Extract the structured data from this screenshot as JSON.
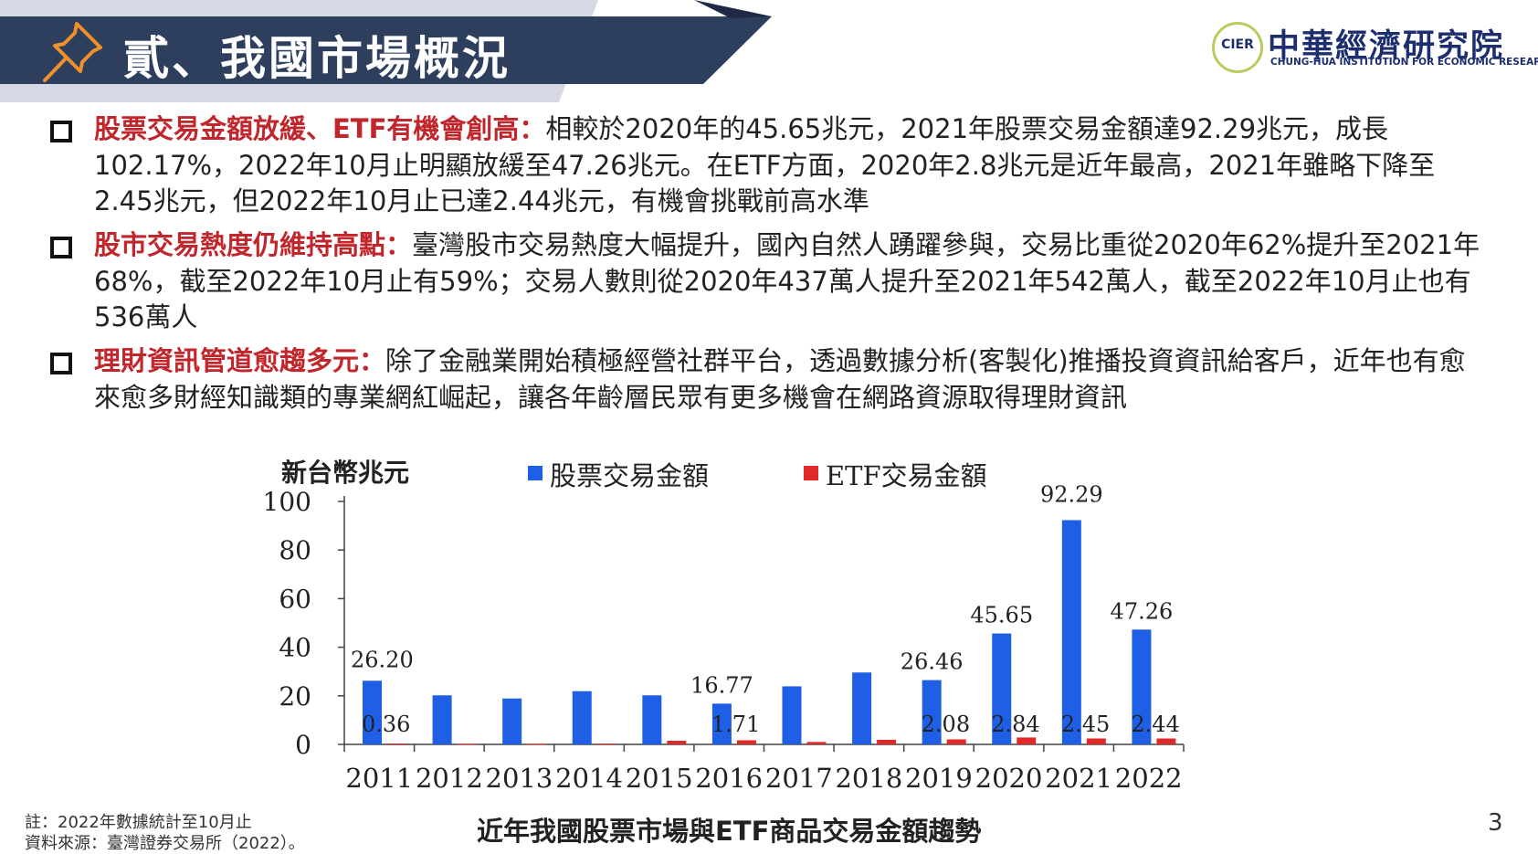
{
  "header": {
    "title": "貳、我國市場概況",
    "logo": {
      "abbr": "CIER",
      "name_zh": "中華經濟研究院",
      "name_en": "CHUNG-HUA INSTITUTION FOR ECONOMIC RESEARCH"
    }
  },
  "bullets": [
    {
      "heading": "股票交易金額放緩、ETF有機會創高：",
      "body": "相較於2020年的45.65兆元，2021年股票交易金額達92.29兆元，成長102.17%，2022年10月止明顯放緩至47.26兆元。在ETF方面，2020年2.8兆元是近年最高，2021年雖略下降至2.45兆元，但2022年10月止已達2.44兆元，有機會挑戰前高水準"
    },
    {
      "heading": "股市交易熱度仍維持高點：",
      "body": "臺灣股市交易熱度大幅提升，國內自然人踴躍參與，交易比重從2020年62%提升至2021年68%，截至2022年10月止有59%；交易人數則從2020年437萬人提升至2021年542萬人，截至2022年10月止也有536萬人"
    },
    {
      "heading": "理財資訊管道愈趨多元：",
      "body": "除了金融業開始積極經營社群平台，透過數據分析(客製化)推播投資資訊給客戶，近年也有愈來愈多財經知識類的專業網紅崛起，讓各年齡層民眾有更多機會在網路資源取得理財資訊"
    }
  ],
  "chart_data": {
    "type": "bar",
    "title": "",
    "ylabel": "新台幣兆元",
    "xlabel": "",
    "caption": "近年我國股票市場與ETF商品交易金額趨勢",
    "categories": [
      "2011",
      "2012",
      "2013",
      "2014",
      "2015",
      "2016",
      "2017",
      "2018",
      "2019",
      "2020",
      "2021",
      "2022"
    ],
    "ylim": [
      0,
      100
    ],
    "yticks": [
      "0",
      "20",
      "40",
      "60",
      "80",
      "100"
    ],
    "series": [
      {
        "name": "股票交易金額",
        "color": "#1f5fe6",
        "values": [
          26.2,
          20.2,
          18.9,
          21.9,
          20.2,
          16.77,
          23.9,
          29.6,
          26.46,
          45.65,
          92.29,
          47.26
        ],
        "labels": [
          "26.20",
          "",
          "",
          "",
          "",
          "16.77",
          "",
          "",
          "26.46",
          "45.65",
          "92.29",
          "47.26"
        ]
      },
      {
        "name": "ETF交易金額",
        "color": "#e02a2a",
        "values": [
          0.36,
          0.2,
          0.2,
          0.3,
          1.5,
          1.71,
          1.0,
          1.9,
          2.08,
          2.84,
          2.45,
          2.44
        ],
        "labels": [
          "0.36",
          "",
          "",
          "",
          "",
          "1.71",
          "",
          "",
          "2.08",
          "2.84",
          "2.45",
          "2.44"
        ]
      }
    ],
    "legend_position": "top",
    "grid": false
  },
  "footer": {
    "note": "註：2022年數據統計至10月止",
    "source": "資料來源：臺灣證券交易所（2022）。",
    "page": "3"
  }
}
